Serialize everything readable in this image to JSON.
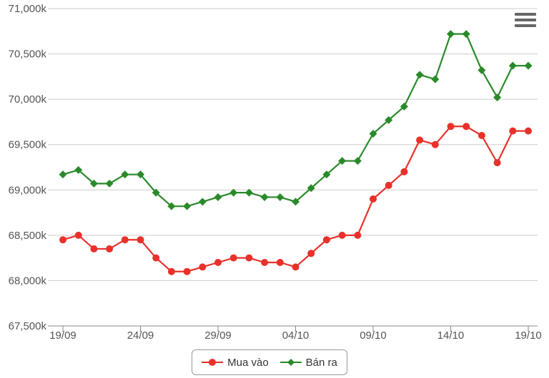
{
  "chart_data": {
    "type": "line",
    "title": "",
    "xlabel": "",
    "ylabel": "",
    "ylim": [
      67500,
      71000
    ],
    "ytick_values": [
      67500,
      68000,
      68500,
      69000,
      69500,
      70000,
      70500,
      71000
    ],
    "ytick_labels": [
      "67,500k",
      "68,000k",
      "68,500k",
      "69,000k",
      "69,500k",
      "70,000k",
      "70,500k",
      "71,000k"
    ],
    "x": [
      "19/09",
      "20/09",
      "21/09",
      "22/09",
      "23/09",
      "24/09",
      "25/09",
      "26/09",
      "27/09",
      "28/09",
      "29/09",
      "30/09",
      "01/10",
      "02/10",
      "03/10",
      "04/10",
      "05/10",
      "06/10",
      "07/10",
      "08/10",
      "09/10",
      "10/10",
      "11/10",
      "12/10",
      "13/10",
      "14/10",
      "15/10",
      "16/10",
      "17/10",
      "18/10",
      "19/10"
    ],
    "xtick_labels": [
      "19/09",
      "24/09",
      "29/09",
      "04/10",
      "09/10",
      "14/10",
      "19/10"
    ],
    "grid": true,
    "legend_position": "bottom-center",
    "series": [
      {
        "name": "Mua vào",
        "color": "#e8312a",
        "marker": "circle",
        "values": [
          68450,
          68500,
          68350,
          68350,
          68450,
          68450,
          68250,
          68100,
          68100,
          68150,
          68200,
          68250,
          68250,
          68200,
          68200,
          68150,
          68300,
          68450,
          68500,
          68500,
          68900,
          69050,
          69200,
          69550,
          69500,
          69700,
          69700,
          69600,
          69300,
          69650,
          69650
        ]
      },
      {
        "name": "Bán ra",
        "color": "#2a8a2a",
        "marker": "diamond",
        "values": [
          69170,
          69220,
          69070,
          69070,
          69170,
          69170,
          68970,
          68820,
          68820,
          68870,
          68920,
          68970,
          68970,
          68920,
          68920,
          68870,
          69020,
          69170,
          69320,
          69320,
          69620,
          69770,
          69920,
          70270,
          70220,
          70720,
          70720,
          70320,
          70020,
          70370,
          70370
        ]
      }
    ]
  },
  "ui": {
    "menu_icon": "hamburger-menu-icon"
  }
}
